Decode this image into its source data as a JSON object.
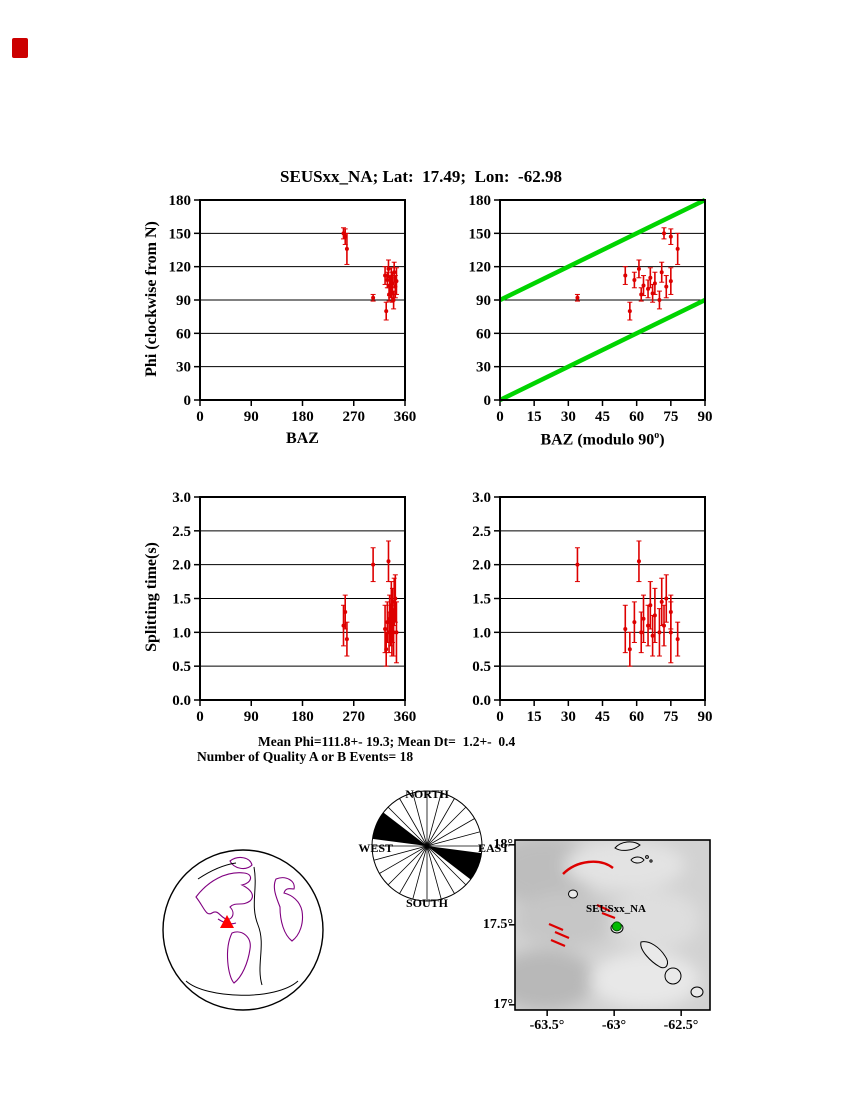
{
  "title": "SEUSxx_NA; Lat:  17.49;  Lon:  -62.98",
  "stats": {
    "mean_line": "Mean Phi=111.8+- 19.3; Mean Dt=  1.2+-  0.4",
    "count_line": "Number of Quality A or B Events= 18"
  },
  "axes_labels": {
    "phi": "Phi (clockwise from N)",
    "baz": "BAZ",
    "baz_mod_pre": "BAZ (modulo 90",
    "baz_mod_sup": "o",
    "baz_mod_post": ")",
    "dt": "Splitting time(s)"
  },
  "colors": {
    "point": "#dd0000",
    "ref_line": "#00d400",
    "frame": "#000000",
    "corner_mark": "#cc0000",
    "globe_coast": "#800080",
    "globe_line": "#000000",
    "globe_marker": "#ff0000",
    "map_bars": "#dd0000",
    "station_dot": "#00bb00"
  },
  "chart_data": {
    "type": "scatter",
    "station": "SEUSxx_NA",
    "lat": 17.49,
    "lon": -62.98,
    "mean_phi": 111.8,
    "mean_phi_err": 19.3,
    "mean_dt": 1.2,
    "mean_dt_err": 0.4,
    "n_quality_events": 18,
    "point_color": "#dd0000",
    "events": [
      {
        "baz": 252,
        "phi": 150,
        "phi_err": 5,
        "dt": 1.1,
        "dt_err": 0.3
      },
      {
        "baz": 255,
        "phi": 147,
        "phi_err": 7,
        "dt": 1.3,
        "dt_err": 0.25
      },
      {
        "baz": 258,
        "phi": 136,
        "phi_err": 14,
        "dt": 0.9,
        "dt_err": 0.25
      },
      {
        "baz": 304,
        "phi": 92,
        "phi_err": 3,
        "dt": 2.0,
        "dt_err": 0.25
      },
      {
        "baz": 325,
        "phi": 112,
        "phi_err": 8,
        "dt": 1.05,
        "dt_err": 0.35
      },
      {
        "baz": 327,
        "phi": 80,
        "phi_err": 8,
        "dt": 0.75,
        "dt_err": 0.25
      },
      {
        "baz": 329,
        "phi": 108,
        "phi_err": 7,
        "dt": 1.15,
        "dt_err": 0.3
      },
      {
        "baz": 331,
        "phi": 118,
        "phi_err": 8,
        "dt": 2.05,
        "dt_err": 0.3
      },
      {
        "baz": 332,
        "phi": 95,
        "phi_err": 6,
        "dt": 1.0,
        "dt_err": 0.3
      },
      {
        "baz": 333,
        "phi": 103,
        "phi_err": 9,
        "dt": 1.2,
        "dt_err": 0.35
      },
      {
        "baz": 335,
        "phi": 100,
        "phi_err": 8,
        "dt": 1.1,
        "dt_err": 0.3
      },
      {
        "baz": 336,
        "phi": 110,
        "phi_err": 9,
        "dt": 1.4,
        "dt_err": 0.35
      },
      {
        "baz": 337,
        "phi": 96,
        "phi_err": 8,
        "dt": 0.95,
        "dt_err": 0.3
      },
      {
        "baz": 338,
        "phi": 105,
        "phi_err": 10,
        "dt": 1.25,
        "dt_err": 0.4
      },
      {
        "baz": 340,
        "phi": 90,
        "phi_err": 8,
        "dt": 1.0,
        "dt_err": 0.35
      },
      {
        "baz": 341,
        "phi": 115,
        "phi_err": 9,
        "dt": 1.45,
        "dt_err": 0.35
      },
      {
        "baz": 343,
        "phi": 102,
        "phi_err": 10,
        "dt": 1.5,
        "dt_err": 0.35
      },
      {
        "baz": 345,
        "phi": 107,
        "phi_err": 12,
        "dt": 1.0,
        "dt_err": 0.45
      }
    ],
    "panels": [
      {
        "name": "phi-vs-baz",
        "x": "baz",
        "y": "phi",
        "yerr": "phi_err",
        "xlim": [
          0,
          360
        ],
        "ylim": [
          0,
          180
        ],
        "xticks": [
          "0",
          "90",
          "180",
          "270",
          "360"
        ],
        "yticks": [
          "0",
          "30",
          "60",
          "90",
          "120",
          "150",
          "180"
        ],
        "grid": true
      },
      {
        "name": "phi-vs-baz-mod90",
        "x": "baz_mod90",
        "y": "phi",
        "yerr": "phi_err",
        "xlim": [
          0,
          90
        ],
        "ylim": [
          0,
          180
        ],
        "xticks": [
          "0",
          "15",
          "30",
          "45",
          "60",
          "75",
          "90"
        ],
        "yticks": [
          "0",
          "30",
          "60",
          "90",
          "120",
          "150",
          "180"
        ],
        "grid": true,
        "ref_lines": [
          {
            "x1": 0,
            "y1": 0,
            "x2": 90,
            "y2": 90,
            "color": "#00d400",
            "width": 4.5
          },
          {
            "x1": 0,
            "y1": 90,
            "x2": 90,
            "y2": 180,
            "color": "#00d400",
            "width": 4.5
          }
        ]
      },
      {
        "name": "dt-vs-baz",
        "x": "baz",
        "y": "dt",
        "yerr": "dt_err",
        "xlim": [
          0,
          360
        ],
        "ylim": [
          0,
          3
        ],
        "xticks": [
          "0",
          "90",
          "180",
          "270",
          "360"
        ],
        "yticks": [
          "0.0",
          "0.5",
          "1.0",
          "1.5",
          "2.0",
          "2.5",
          "3.0"
        ],
        "grid": true
      },
      {
        "name": "dt-vs-baz-mod90",
        "x": "baz_mod90",
        "y": "dt",
        "yerr": "dt_err",
        "xlim": [
          0,
          90
        ],
        "ylim": [
          0,
          3
        ],
        "xticks": [
          "0",
          "15",
          "30",
          "45",
          "60",
          "75",
          "90"
        ],
        "yticks": [
          "0.0",
          "0.5",
          "1.0",
          "1.5",
          "2.0",
          "2.5",
          "3.0"
        ],
        "grid": true
      }
    ]
  },
  "rose": {
    "labels": {
      "north": "NORTH",
      "south": "SOUTH",
      "east": "EAST",
      "west": "WEST"
    },
    "spoke_step_deg": 15,
    "petals": [
      {
        "az1": 97.5,
        "az2": 127.5,
        "r": 1
      },
      {
        "az1": 277.5,
        "az2": 307.5,
        "r": 1
      }
    ]
  },
  "map": {
    "xticks": [
      {
        "label": "-63.5°",
        "lon": -63.5
      },
      {
        "label": "-63°",
        "lon": -63.0
      },
      {
        "label": "-62.5°",
        "lon": -62.5
      }
    ],
    "yticks": [
      {
        "label": "18°",
        "lat": 18.0
      },
      {
        "label": "17.5°",
        "lat": 17.5
      },
      {
        "label": "17°",
        "lat": 17.0
      }
    ],
    "station_label": "SEUSxx_NA",
    "station": {
      "lon": -62.98,
      "lat": 17.49
    }
  }
}
